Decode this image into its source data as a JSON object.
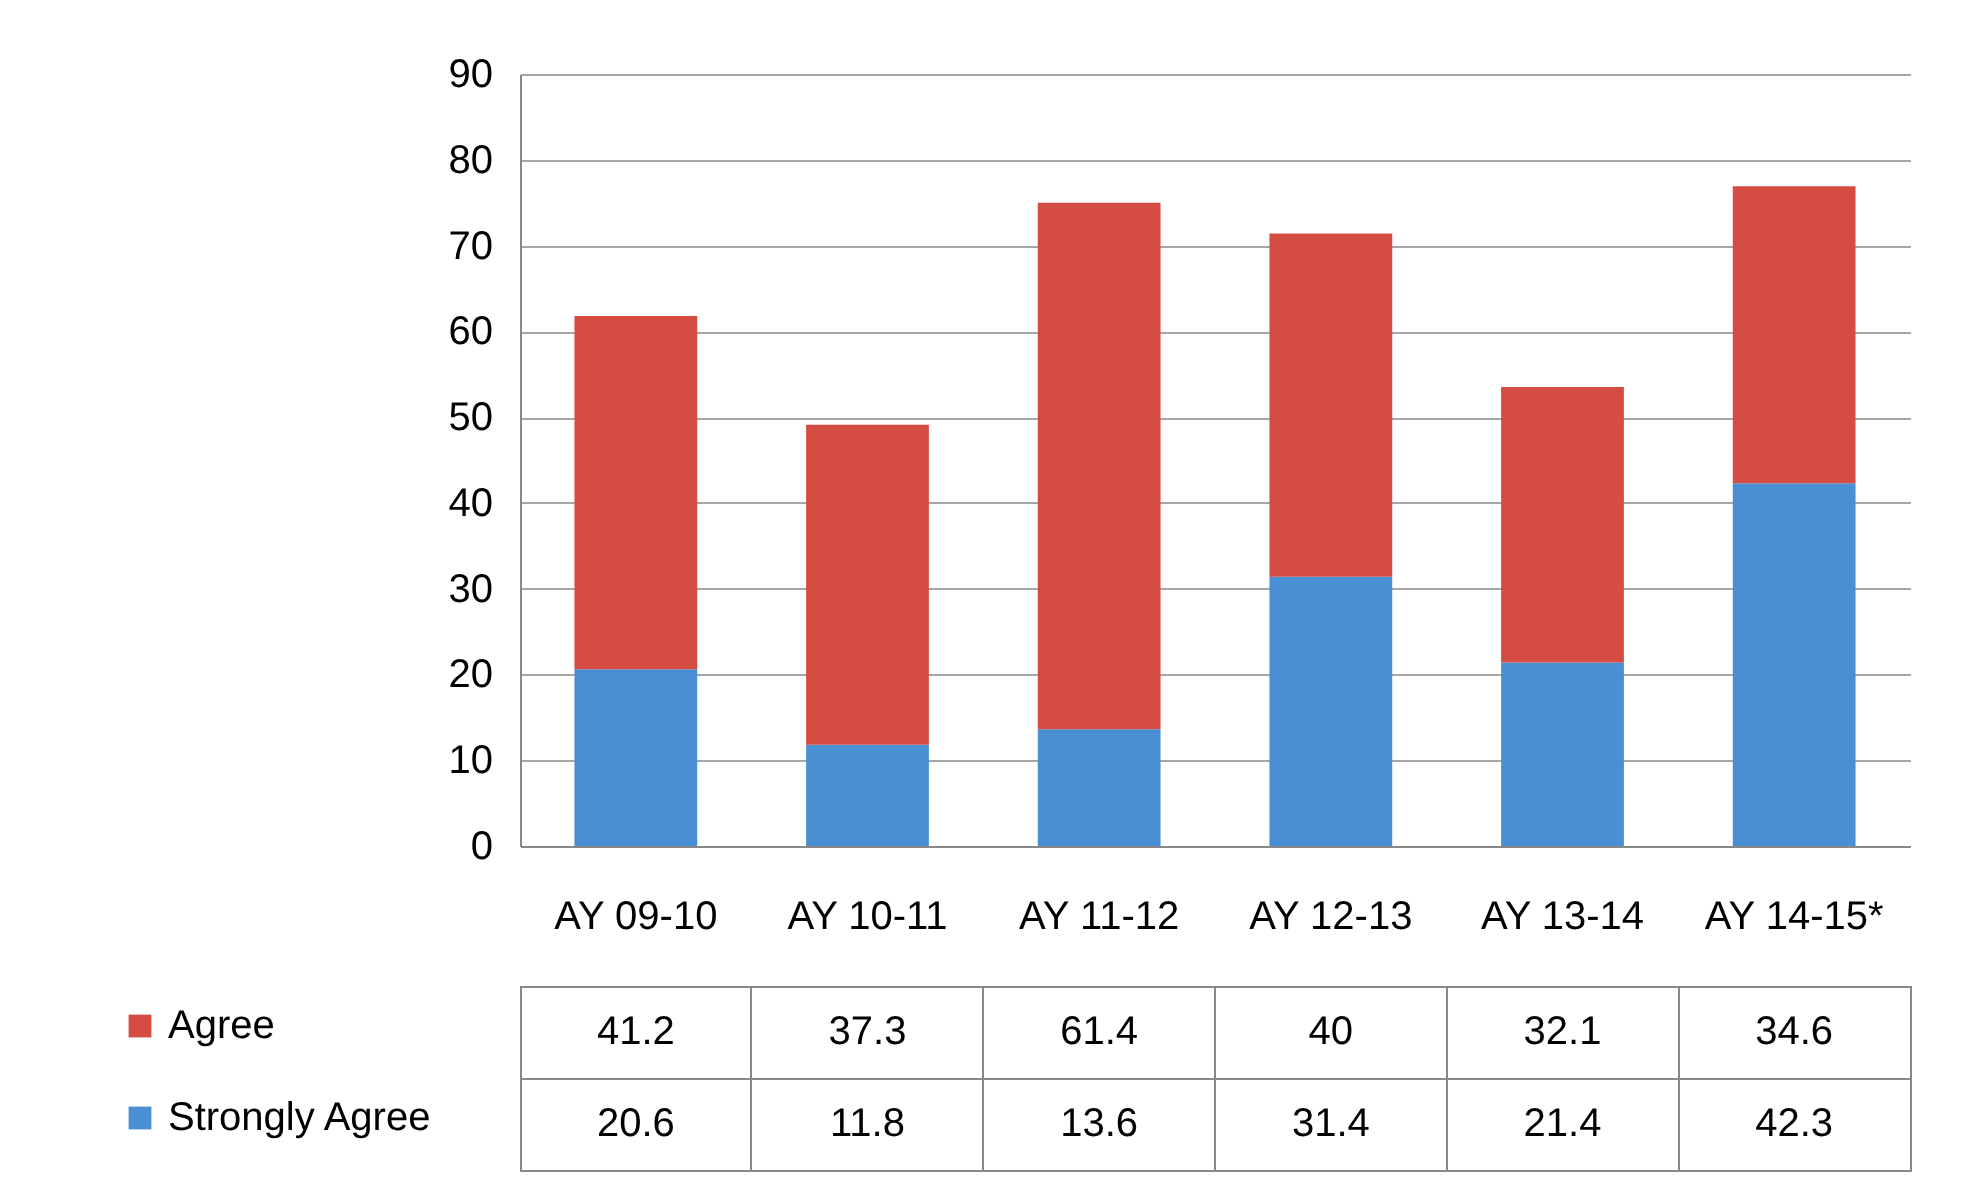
{
  "chart_data": {
    "type": "bar",
    "stacked": true,
    "categories": [
      "AY 09-10",
      "AY 10-11",
      "AY 11-12",
      "AY 12-13",
      "AY 13-14",
      "AY 14-15*"
    ],
    "series": [
      {
        "name": "Strongly Agree",
        "color": "#4a8fd4",
        "values": [
          20.6,
          11.8,
          13.6,
          31.4,
          21.4,
          42.3
        ]
      },
      {
        "name": "Agree",
        "color": "#d54c43",
        "values": [
          41.2,
          37.3,
          61.4,
          40,
          32.1,
          34.6
        ]
      }
    ],
    "ylim": [
      0,
      90
    ],
    "yticks": [
      0,
      10,
      20,
      30,
      40,
      50,
      60,
      70,
      80,
      90
    ],
    "grid": "y",
    "legend": "bottom left",
    "data_labels": true
  }
}
